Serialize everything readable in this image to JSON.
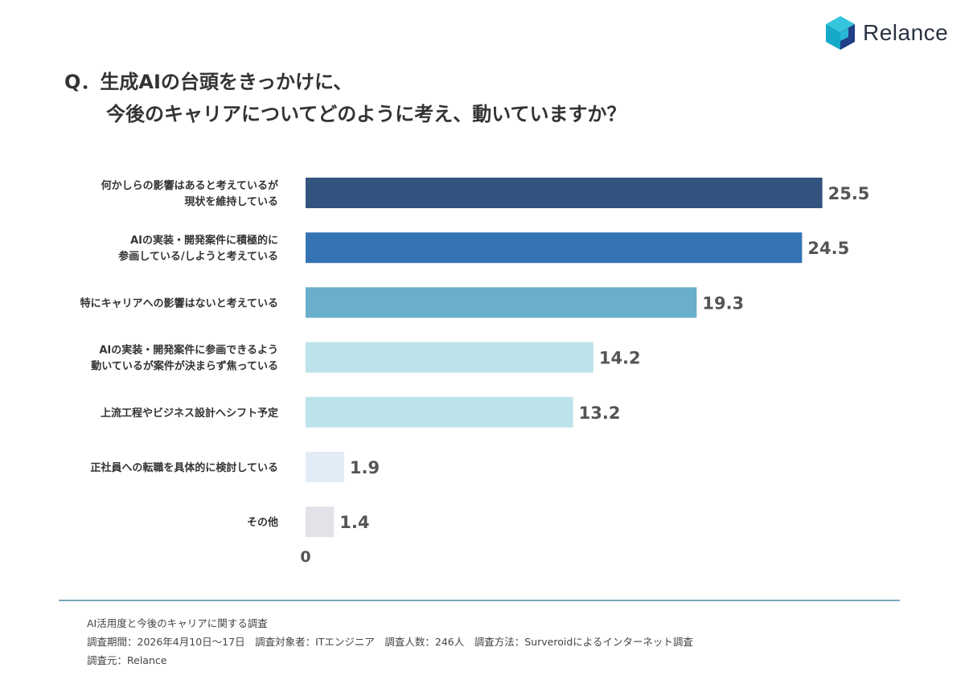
{
  "brand": {
    "name": "Relance"
  },
  "question": {
    "line1": "Q．生成AIの台頭をきっかけに、",
    "line2": "今後のキャリアについてどのように考え、動いていますか？"
  },
  "chart_data": {
    "type": "bar",
    "orientation": "horizontal",
    "categories": [
      [
        "何かしらの影響はあると考えているが",
        "現状を維持している"
      ],
      [
        "AIの実装・開発案件に積極的に",
        "参画している/しようと考えている"
      ],
      [
        "特にキャリアへの影響はないと考えている"
      ],
      [
        "AIの実装・開発案件に参画できるよう",
        "動いているが案件が決まらず焦っている"
      ],
      [
        "上流工程やビジネス設計へシフト予定"
      ],
      [
        "正社員への転職を具体的に検討している"
      ],
      [
        "その他"
      ]
    ],
    "values": [
      25.5,
      24.5,
      19.3,
      14.2,
      13.2,
      1.9,
      1.4
    ],
    "value_labels": [
      "25.5",
      "24.5",
      "19.3",
      "14.2",
      "13.2",
      "1.9",
      "1.4"
    ],
    "colors": [
      "#33547e",
      "#3474b4",
      "#69aecb",
      "#bde3ea",
      "#bde3ea",
      "#e2ecf6",
      "#e3e2e8"
    ],
    "x_tick_labels": [
      "0"
    ],
    "xlim": [
      0,
      28
    ],
    "grid": false,
    "legend": "none"
  },
  "footer": {
    "line1": "AI活用度と今後のキャリアに関する調査",
    "line2": "調査期間：2026年4月10日〜17日　調査対象者：ITエンジニア　調査人数：246人　調査方法：Surveroidによるインターネット調査",
    "line3": "調査元：Relance"
  }
}
